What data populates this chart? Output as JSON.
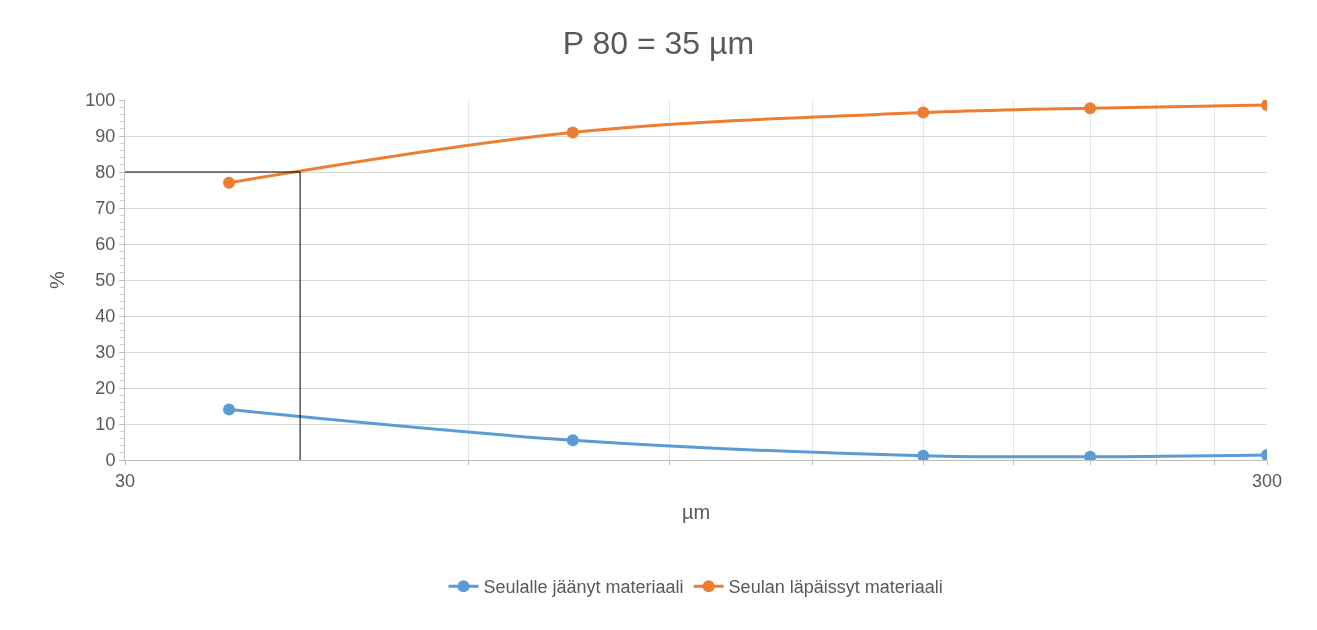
{
  "chart_data": {
    "type": "line",
    "title": "P 80 = 35 µm",
    "xlabel": "µm",
    "ylabel": "%",
    "log": "x",
    "xlim": [
      30,
      300
    ],
    "xticks": [
      30,
      {
        "value": 60,
        "label": null
      },
      {
        "value": 90,
        "label": null
      },
      {
        "value": 120,
        "label": null
      },
      {
        "value": 150,
        "label": null
      },
      {
        "value": 180,
        "label": null
      },
      {
        "value": 210,
        "label": null
      },
      {
        "value": 240,
        "label": null
      },
      {
        "value": 270,
        "label": null
      },
      300
    ],
    "ylim": [
      0,
      100
    ],
    "yticks": [
      0,
      10,
      20,
      30,
      40,
      50,
      60,
      70,
      80,
      90,
      100
    ],
    "grid": true,
    "legend": "bottom",
    "marker": "circle",
    "line_style": "solid",
    "series": [
      {
        "name": "Seulalle jäänyt materiaali",
        "color": "#5b9bd5",
        "x": [
          37,
          74,
          150,
          210,
          300
        ],
        "values": [
          14,
          5.5,
          1.2,
          0.9,
          1.4
        ]
      },
      {
        "name": "Seulan läpäissyt materiaali",
        "color": "#ed7d31",
        "x": [
          37,
          74,
          150,
          210,
          300
        ],
        "values": [
          77,
          91,
          96.5,
          97.7,
          98.6
        ]
      }
    ],
    "ref_lines": [
      {
        "axis": "y",
        "value": 80,
        "color": "#000000"
      },
      {
        "axis": "x",
        "value": 42.7,
        "color": "#000000"
      }
    ]
  }
}
